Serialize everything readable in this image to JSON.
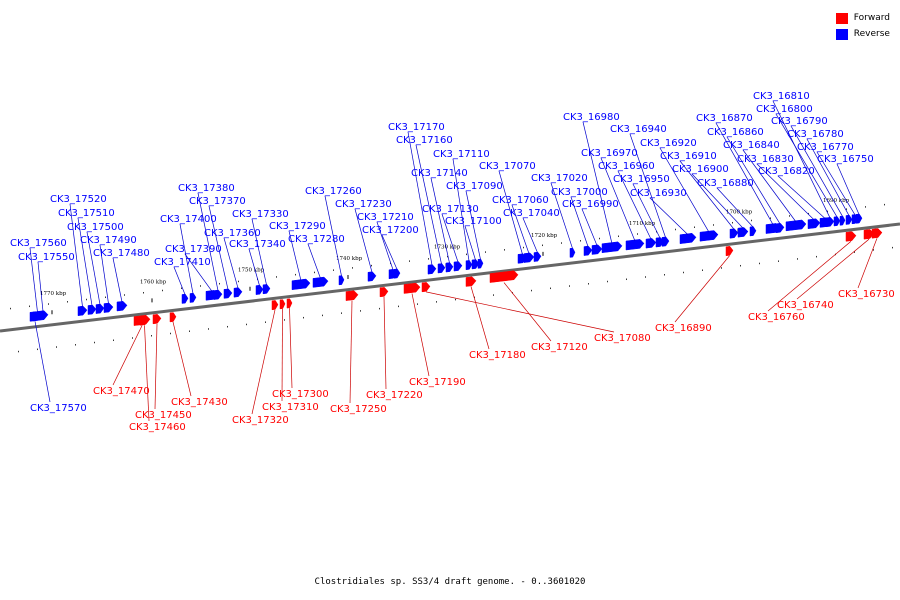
{
  "legend": [
    {
      "label": "Forward",
      "color": "#ff0000"
    },
    {
      "label": "Reverse",
      "color": "#0000ff"
    }
  ],
  "caption": "Clostridiales sp. SS3/4 draft genome. - 0..3601020",
  "ticks": [
    "1770 kbp",
    "1760 kbp",
    "1750 kbp",
    "1740 kbp",
    "1730 kbp",
    "1720 kbp",
    "1710 kbp",
    "1700 kbp",
    "1690 kbp"
  ],
  "colors": {
    "forward": "#ff0000",
    "reverse": "#0000ff",
    "axis": "#666666",
    "reverse_line": "#0000cc",
    "forward_line": "#cc0000"
  },
  "genes": [
    {
      "name": "CK3_17570",
      "strand": "reverse"
    },
    {
      "name": "CK3_17560",
      "strand": "reverse"
    },
    {
      "name": "CK3_17550",
      "strand": "reverse"
    },
    {
      "name": "CK3_17520",
      "strand": "reverse"
    },
    {
      "name": "CK3_17510",
      "strand": "reverse"
    },
    {
      "name": "CK3_17500",
      "strand": "reverse"
    },
    {
      "name": "CK3_17490",
      "strand": "reverse"
    },
    {
      "name": "CK3_17480",
      "strand": "reverse"
    },
    {
      "name": "CK3_17470",
      "strand": "forward"
    },
    {
      "name": "CK3_17460",
      "strand": "forward"
    },
    {
      "name": "CK3_17450",
      "strand": "forward"
    },
    {
      "name": "CK3_17430",
      "strand": "forward"
    },
    {
      "name": "CK3_17410",
      "strand": "reverse"
    },
    {
      "name": "CK3_17400",
      "strand": "reverse"
    },
    {
      "name": "CK3_17390",
      "strand": "reverse"
    },
    {
      "name": "CK3_17380",
      "strand": "reverse"
    },
    {
      "name": "CK3_17370",
      "strand": "reverse"
    },
    {
      "name": "CK3_17360",
      "strand": "reverse"
    },
    {
      "name": "CK3_17340",
      "strand": "reverse"
    },
    {
      "name": "CK3_17330",
      "strand": "reverse"
    },
    {
      "name": "CK3_17320",
      "strand": "forward"
    },
    {
      "name": "CK3_17310",
      "strand": "forward"
    },
    {
      "name": "CK3_17300",
      "strand": "forward"
    },
    {
      "name": "CK3_17290",
      "strand": "reverse"
    },
    {
      "name": "CK3_17280",
      "strand": "reverse"
    },
    {
      "name": "CK3_17260",
      "strand": "reverse"
    },
    {
      "name": "CK3_17250",
      "strand": "forward"
    },
    {
      "name": "CK3_17230",
      "strand": "reverse"
    },
    {
      "name": "CK3_17220",
      "strand": "forward"
    },
    {
      "name": "CK3_17210",
      "strand": "reverse"
    },
    {
      "name": "CK3_17200",
      "strand": "reverse"
    },
    {
      "name": "CK3_17190",
      "strand": "forward"
    },
    {
      "name": "CK3_17180",
      "strand": "forward"
    },
    {
      "name": "CK3_17170",
      "strand": "reverse"
    },
    {
      "name": "CK3_17160",
      "strand": "reverse"
    },
    {
      "name": "CK3_17140",
      "strand": "reverse"
    },
    {
      "name": "CK3_17130",
      "strand": "reverse"
    },
    {
      "name": "CK3_17120",
      "strand": "forward"
    },
    {
      "name": "CK3_17110",
      "strand": "reverse"
    },
    {
      "name": "CK3_17100",
      "strand": "reverse"
    },
    {
      "name": "CK3_17090",
      "strand": "reverse"
    },
    {
      "name": "CK3_17080",
      "strand": "forward"
    },
    {
      "name": "CK3_17070",
      "strand": "reverse"
    },
    {
      "name": "CK3_17060",
      "strand": "reverse"
    },
    {
      "name": "CK3_17040",
      "strand": "reverse"
    },
    {
      "name": "CK3_17020",
      "strand": "reverse"
    },
    {
      "name": "CK3_17000",
      "strand": "reverse"
    },
    {
      "name": "CK3_16990",
      "strand": "reverse"
    },
    {
      "name": "CK3_16980",
      "strand": "reverse"
    },
    {
      "name": "CK3_16970",
      "strand": "reverse"
    },
    {
      "name": "CK3_16960",
      "strand": "reverse"
    },
    {
      "name": "CK3_16950",
      "strand": "reverse"
    },
    {
      "name": "CK3_16940",
      "strand": "reverse"
    },
    {
      "name": "CK3_16930",
      "strand": "reverse"
    },
    {
      "name": "CK3_16920",
      "strand": "reverse"
    },
    {
      "name": "CK3_16910",
      "strand": "reverse"
    },
    {
      "name": "CK3_16900",
      "strand": "reverse"
    },
    {
      "name": "CK3_16890",
      "strand": "forward"
    },
    {
      "name": "CK3_16880",
      "strand": "reverse"
    },
    {
      "name": "CK3_16870",
      "strand": "reverse"
    },
    {
      "name": "CK3_16860",
      "strand": "reverse"
    },
    {
      "name": "CK3_16840",
      "strand": "reverse"
    },
    {
      "name": "CK3_16830",
      "strand": "reverse"
    },
    {
      "name": "CK3_16820",
      "strand": "reverse"
    },
    {
      "name": "CK3_16810",
      "strand": "reverse"
    },
    {
      "name": "CK3_16800",
      "strand": "reverse"
    },
    {
      "name": "CK3_16790",
      "strand": "reverse"
    },
    {
      "name": "CK3_16780",
      "strand": "reverse"
    },
    {
      "name": "CK3_16770",
      "strand": "reverse"
    },
    {
      "name": "CK3_16760",
      "strand": "forward"
    },
    {
      "name": "CK3_16750",
      "strand": "reverse"
    },
    {
      "name": "CK3_16740",
      "strand": "forward"
    },
    {
      "name": "CK3_16730",
      "strand": "forward"
    }
  ]
}
